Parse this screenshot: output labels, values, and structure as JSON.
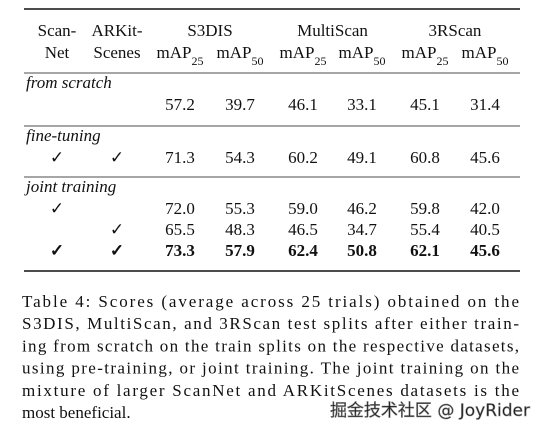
{
  "table": {
    "header": {
      "scannet": [
        "Scan-",
        "Net"
      ],
      "arkit": [
        "ARKit-",
        "Scenes"
      ],
      "groups": [
        "S3DIS",
        "MultiScan",
        "3RScan"
      ],
      "metrics": [
        {
          "text": "mAP",
          "sub": "25"
        },
        {
          "text": "mAP",
          "sub": "50"
        },
        {
          "text": "mAP",
          "sub": "25"
        },
        {
          "text": "mAP",
          "sub": "50"
        },
        {
          "text": "mAP",
          "sub": "25"
        },
        {
          "text": "mAP",
          "sub": "50"
        }
      ]
    },
    "sections": [
      {
        "title": "from scratch",
        "rows": [
          {
            "cells": [
              null,
              null,
              "57.2",
              "39.7",
              "46.1",
              "33.1",
              "45.1",
              "31.4"
            ],
            "bold": false
          }
        ]
      },
      {
        "title": "fine-tuning",
        "rows": [
          {
            "cells": [
              "✓",
              "✓",
              "71.3",
              "54.3",
              "60.2",
              "49.1",
              "60.8",
              "45.6"
            ],
            "bold": false
          }
        ]
      },
      {
        "title": "joint training",
        "rows": [
          {
            "cells": [
              "✓",
              null,
              "72.0",
              "55.3",
              "59.0",
              "46.2",
              "59.8",
              "42.0"
            ],
            "bold": false
          },
          {
            "cells": [
              null,
              "✓",
              "65.5",
              "48.3",
              "46.5",
              "34.7",
              "55.4",
              "40.5"
            ],
            "bold": false
          },
          {
            "cells": [
              "✓",
              "✓",
              "73.3",
              "57.9",
              "62.4",
              "50.8",
              "62.1",
              "45.6"
            ],
            "bold": true
          }
        ]
      }
    ]
  },
  "caption": [
    "Table 4: Scores (average across 25 trials) obtained on the",
    "S3DIS, MultiScan, and 3RScan test splits after either train-",
    "ing from scratch on the train splits on the respective datasets,",
    "using pre-training, or joint training. The joint training on the",
    "mixture of larger ScanNet and ARKitScenes datasets is the",
    "most beneficial."
  ],
  "watermark": "掘金技术社区 @ JoyRider"
}
